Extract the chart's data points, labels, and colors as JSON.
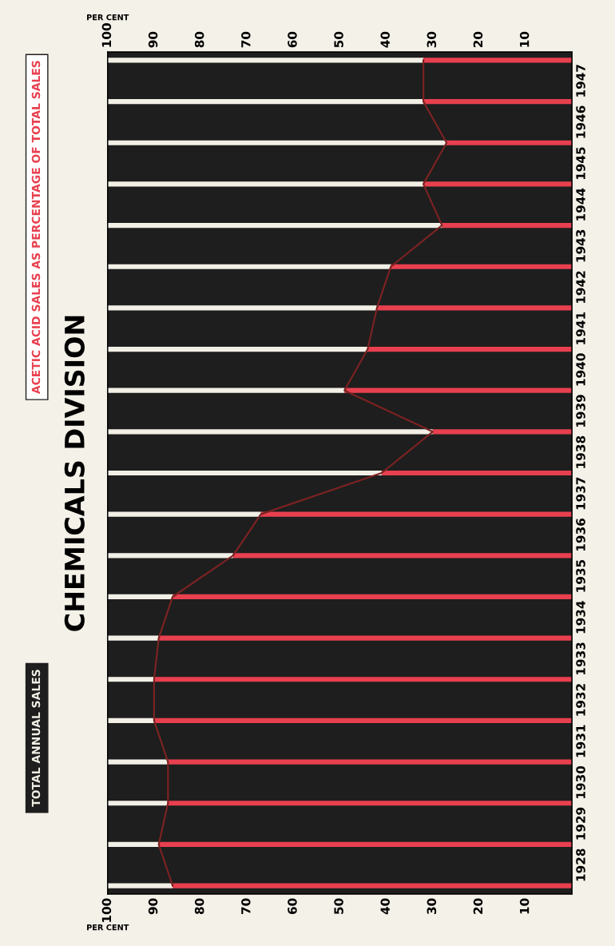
{
  "chart_data": {
    "type": "bar",
    "title": "CHEMICALS DIVISION",
    "orientation": "horizontal",
    "stacked": true,
    "x": [
      1928,
      1929,
      1930,
      1931,
      1932,
      1933,
      1934,
      1935,
      1936,
      1937,
      1938,
      1939,
      1940,
      1941,
      1942,
      1943,
      1944,
      1945,
      1946,
      1947,
      1948
    ],
    "series": [
      {
        "name": "ACETIC ACID SALES AS PERCENTAGE OF TOTAL SALES",
        "color": "#e8404f",
        "values": [
          86,
          89,
          87,
          87,
          90,
          90,
          89,
          86,
          73,
          67,
          41,
          30,
          49,
          44,
          42,
          39,
          28,
          32,
          27,
          32,
          32
        ]
      },
      {
        "name": "TOTAL ANNUAL SALES",
        "color": "#f2efe6",
        "values": [
          14,
          11,
          13,
          13,
          10,
          10,
          11,
          14,
          27,
          33,
          59,
          70,
          51,
          56,
          58,
          61,
          72,
          68,
          73,
          68,
          68
        ]
      },
      {
        "type": "line",
        "color": "#7a2222",
        "values": [
          86,
          89,
          87,
          87,
          90,
          90,
          89,
          86,
          73,
          67,
          41,
          30,
          49,
          44,
          42,
          39,
          28,
          32,
          27,
          32,
          32
        ]
      }
    ],
    "xlabel": "PER CENT",
    "x2label": "PER CENT",
    "xlim": [
      100,
      0
    ],
    "xticks": [
      100,
      90,
      80,
      70,
      60,
      50,
      40,
      30,
      20,
      10
    ],
    "x2lim": [
      100,
      0
    ],
    "x2ticks": [
      100,
      90,
      80,
      70,
      60,
      50,
      40,
      30,
      20,
      10
    ],
    "ylim": [
      1927.8,
      1948.2
    ],
    "yticks": [
      {
        "value": 1928.5,
        "label": "1928"
      },
      {
        "value": 1929.5,
        "label": "1929"
      },
      {
        "value": 1930.5,
        "label": "1930"
      },
      {
        "value": 1931.5,
        "label": "1931"
      },
      {
        "value": 1932.5,
        "label": "1932"
      },
      {
        "value": 1933.5,
        "label": "1933"
      },
      {
        "value": 1934.5,
        "label": "1934"
      },
      {
        "value": 1935.5,
        "label": "1935"
      },
      {
        "value": 1936.5,
        "label": "1936"
      },
      {
        "value": 1937.5,
        "label": "1937"
      },
      {
        "value": 1938.5,
        "label": "1938"
      },
      {
        "value": 1939.5,
        "label": "1939"
      },
      {
        "value": 1940.5,
        "label": "1940"
      },
      {
        "value": 1941.5,
        "label": "1941"
      },
      {
        "value": 1942.5,
        "label": "1942"
      },
      {
        "value": 1943.5,
        "label": "1943"
      },
      {
        "value": 1944.5,
        "label": "1944"
      },
      {
        "value": 1945.5,
        "label": "1945"
      },
      {
        "value": 1946.5,
        "label": "1946"
      },
      {
        "value": 1947.5,
        "label": "1947"
      }
    ]
  }
}
